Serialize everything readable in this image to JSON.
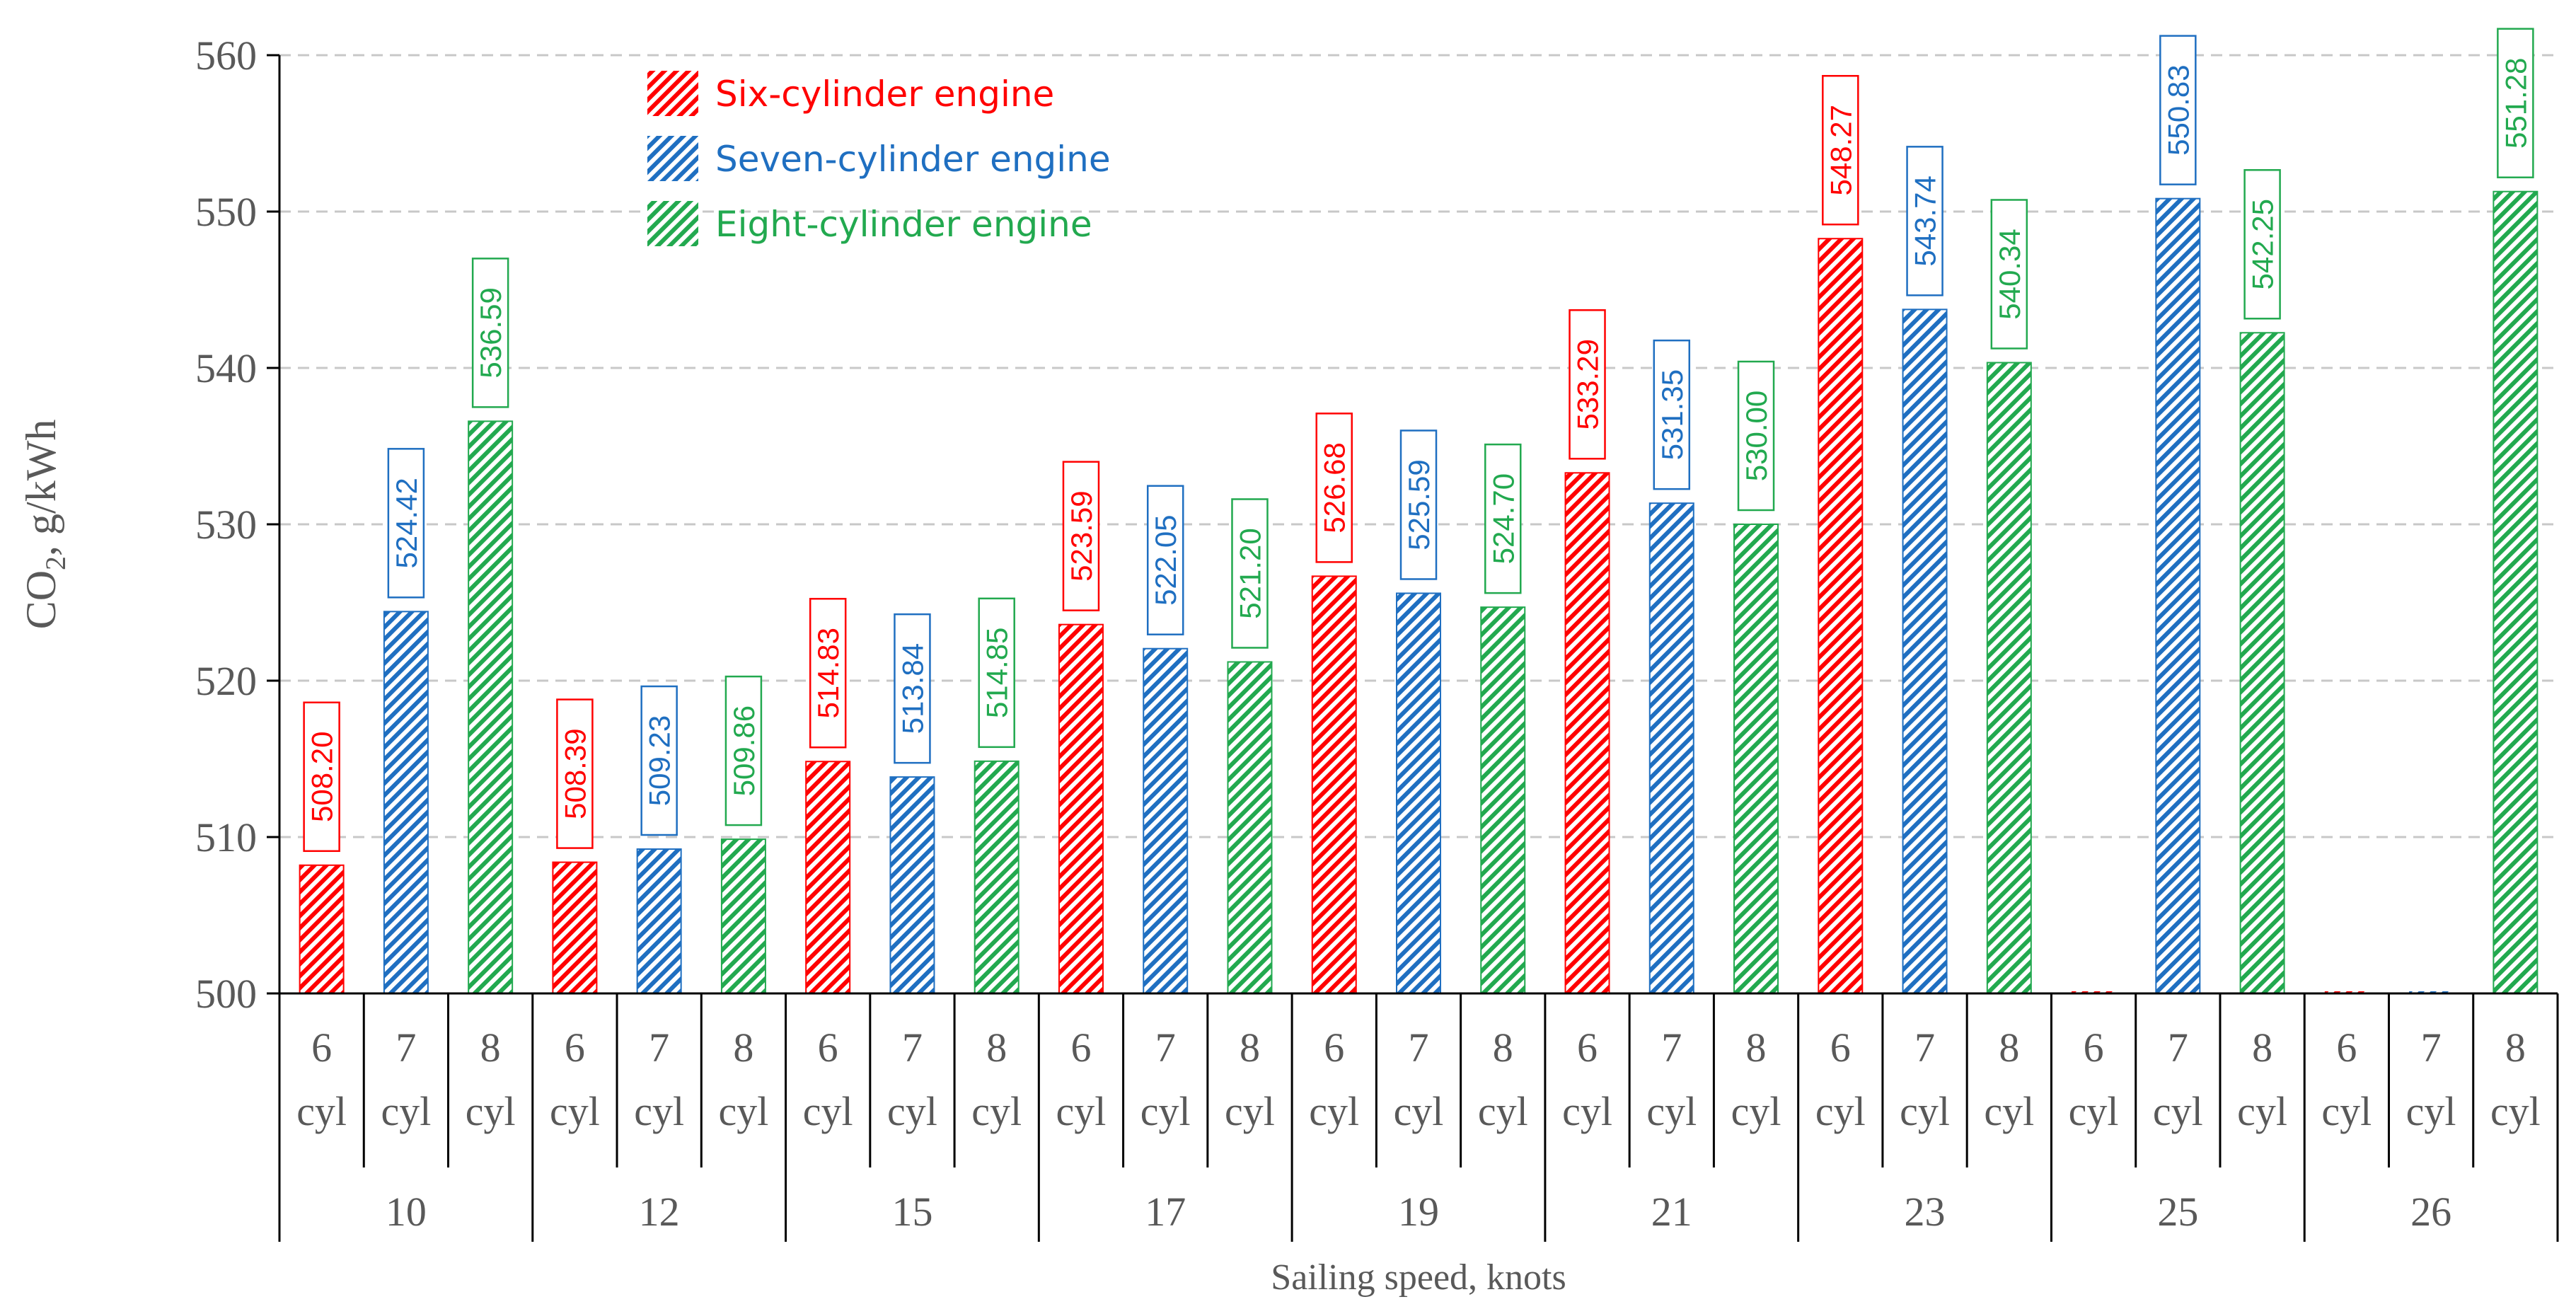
{
  "chart_data": {
    "type": "bar",
    "title": "",
    "ylabel": "CO2, g/kWh",
    "ylabel_main": "CO",
    "ylabel_sub": "2",
    "ylabel_rest": ", g/kWh",
    "xlabel": "Sailing speed, knots",
    "ylim": [
      500,
      560
    ],
    "yticks": [
      500,
      510,
      520,
      530,
      540,
      550,
      560
    ],
    "ytick_labels": [
      "500",
      "510",
      "520",
      "530",
      "540",
      "550",
      "560"
    ],
    "grid": true,
    "legend_position": "top-center",
    "categories": [
      "10",
      "12",
      "15",
      "17",
      "19",
      "21",
      "23",
      "25",
      "26"
    ],
    "subcategories": [
      {
        "num": "6",
        "unit": "cyl"
      },
      {
        "num": "7",
        "unit": "cyl"
      },
      {
        "num": "8",
        "unit": "cyl"
      }
    ],
    "series": [
      {
        "name": "Six-cylinder engine",
        "color": "#ff0000",
        "values": [
          508.2,
          508.39,
          514.83,
          523.59,
          526.68,
          533.29,
          548.27,
          null,
          null
        ],
        "labels": [
          "508.20",
          "508.39",
          "514.83",
          "523.59",
          "526.68",
          "533.29",
          "548.27",
          null,
          null
        ]
      },
      {
        "name": "Seven-cylinder engine",
        "color": "#1f6fc1",
        "values": [
          524.42,
          509.23,
          513.84,
          522.05,
          525.59,
          531.35,
          543.74,
          550.83,
          null
        ],
        "labels": [
          "524.42",
          "509.23",
          "513.84",
          "522.05",
          "525.59",
          "531.35",
          "543.74",
          "550.83",
          null
        ]
      },
      {
        "name": "Eight-cylinder engine",
        "color": "#22a94f",
        "values": [
          536.59,
          509.86,
          514.85,
          521.2,
          524.7,
          530.0,
          540.34,
          542.25,
          551.28
        ],
        "labels": [
          "536.59",
          "509.86",
          "514.85",
          "521.20",
          "524.70",
          "530.00",
          "540.34",
          "542.25",
          "551.28"
        ]
      }
    ]
  }
}
